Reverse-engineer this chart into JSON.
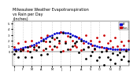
{
  "title": "Milwaukee Weather Evapotranspiration\nvs Rain per Day\n(Inches)",
  "title_fontsize": 3.5,
  "background_color": "#ffffff",
  "legend_labels": [
    "ET",
    "Rain"
  ],
  "legend_colors": [
    "#0000cc",
    "#cc0000"
  ],
  "ylim_low": -0.25,
  "ylim_high": 0.55,
  "y_ticks": [
    0.0,
    0.1,
    0.2,
    0.3,
    0.4,
    0.5
  ],
  "y_tick_labels": [
    "0",
    ".1",
    ".2",
    ".3",
    ".4",
    ".5"
  ],
  "grid_color": "#aaaaaa",
  "et_color": "#0000cc",
  "rain_color": "#cc0000",
  "black_color": "#000000",
  "month_starts": [
    1,
    5,
    9,
    13,
    18,
    22,
    26,
    31,
    35,
    39,
    44,
    48
  ],
  "month_names": [
    "J",
    "F",
    "M",
    "A",
    "M",
    "J",
    "J",
    "A",
    "S",
    "O",
    "N",
    "D"
  ],
  "et_y": [
    0.04,
    0.04,
    0.05,
    0.06,
    0.07,
    0.08,
    0.09,
    0.1,
    0.11,
    0.13,
    0.15,
    0.17,
    0.2,
    0.22,
    0.24,
    0.26,
    0.28,
    0.3,
    0.32,
    0.33,
    0.34,
    0.35,
    0.35,
    0.34,
    0.33,
    0.32,
    0.3,
    0.28,
    0.26,
    0.24,
    0.22,
    0.2,
    0.18,
    0.16,
    0.14,
    0.12,
    0.11,
    0.1,
    0.09,
    0.08,
    0.07,
    0.07,
    0.06,
    0.06,
    0.05,
    0.05,
    0.05,
    0.04,
    0.04,
    0.04,
    0.04,
    0.04
  ],
  "rain_y": [
    0.08,
    0.02,
    0.15,
    0.05,
    0.03,
    0.18,
    0.01,
    0.1,
    0.2,
    0.05,
    0.12,
    0.08,
    0.25,
    0.03,
    0.18,
    0.3,
    0.1,
    0.05,
    0.22,
    0.08,
    0.15,
    0.35,
    0.02,
    0.18,
    0.28,
    0.05,
    0.2,
    0.12,
    0.08,
    0.25,
    0.03,
    0.15,
    0.3,
    0.08,
    0.2,
    0.12,
    0.05,
    0.25,
    0.18,
    0.08,
    0.3,
    0.05,
    0.15,
    0.2,
    0.08,
    0.25,
    0.1,
    0.05,
    0.18,
    0.12,
    0.03,
    0.2
  ],
  "markersize": 1.0,
  "grid_linewidth": 0.4,
  "spine_linewidth": 0.3
}
